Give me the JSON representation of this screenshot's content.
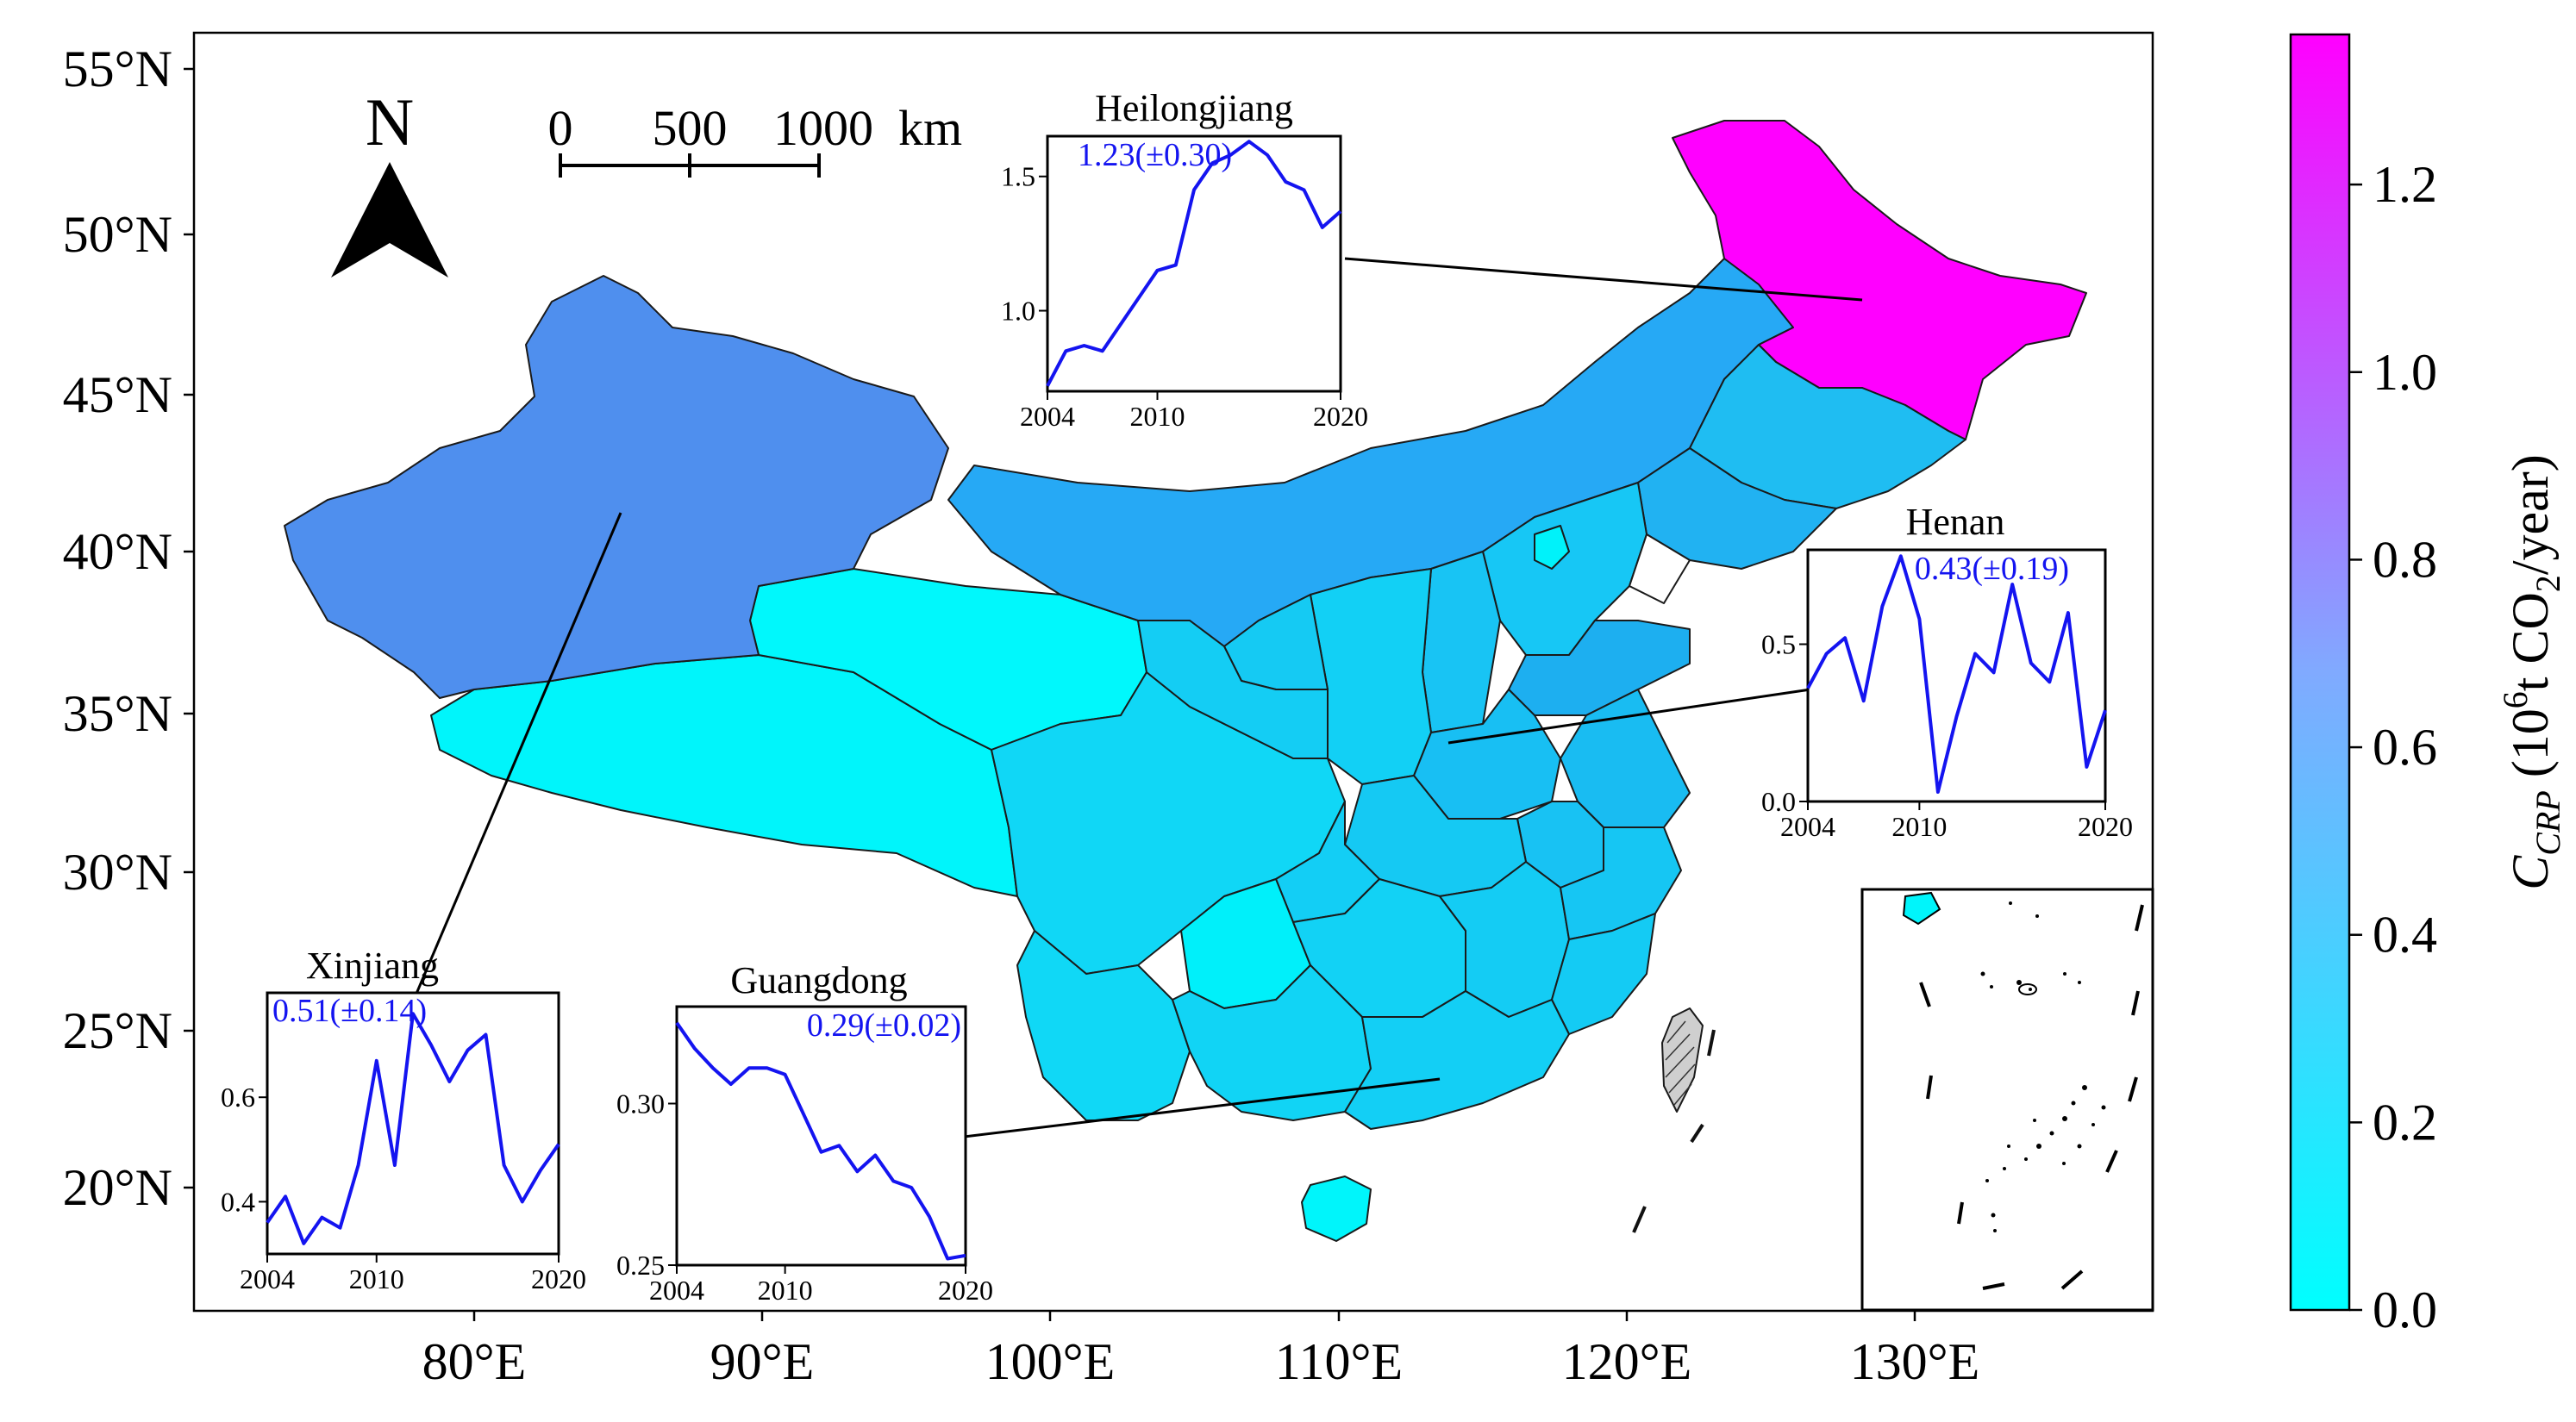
{
  "map": {
    "lat_labels": [
      "55°N",
      "50°N",
      "45°N",
      "40°N",
      "35°N",
      "30°N",
      "25°N",
      "20°N"
    ],
    "lon_labels": [
      "80°E",
      "90°E",
      "100°E",
      "110°E",
      "120°E",
      "130°E"
    ],
    "north_arrow_label": "N",
    "scale_bar": {
      "ticks": [
        "0",
        "500",
        "1000"
      ],
      "unit": "km"
    }
  },
  "colorbar": {
    "label_main": "C",
    "label_sub": "CRP",
    "label_rest": " (10",
    "label_sup": "6",
    "label_rest2": "t CO",
    "label_sub2": "2",
    "label_rest3": "/year)",
    "ticks": [
      "0.0",
      "0.2",
      "0.4",
      "0.6",
      "0.8",
      "1.0",
      "1.2"
    ],
    "colors": {
      "min": "#00ffff",
      "max": "#ff00ff"
    }
  },
  "chart_data": [
    {
      "type": "line",
      "name": "Heilongjiang",
      "title": "Heilongjiang",
      "annotation": "1.23(±0.30)",
      "x": [
        2004,
        2005,
        2006,
        2007,
        2008,
        2009,
        2010,
        2011,
        2012,
        2013,
        2014,
        2015,
        2016,
        2017,
        2018,
        2019,
        2020
      ],
      "values": [
        0.72,
        0.85,
        0.87,
        0.85,
        0.95,
        1.05,
        1.15,
        1.17,
        1.45,
        1.55,
        1.58,
        1.63,
        1.58,
        1.48,
        1.45,
        1.31,
        1.37
      ],
      "xlim": [
        2004,
        2020
      ],
      "ylim": [
        0.7,
        1.65
      ],
      "xticks": [
        "2004",
        "2010",
        "2020"
      ],
      "yticks": [
        "1.0",
        "1.5"
      ],
      "ytick_values": [
        1.0,
        1.5
      ]
    },
    {
      "type": "line",
      "name": "Henan",
      "title": "Henan",
      "annotation": "0.43(±0.19)",
      "x": [
        2004,
        2005,
        2006,
        2007,
        2008,
        2009,
        2010,
        2011,
        2012,
        2013,
        2014,
        2015,
        2016,
        2017,
        2018,
        2019,
        2020
      ],
      "values": [
        0.36,
        0.47,
        0.52,
        0.32,
        0.62,
        0.78,
        0.58,
        0.03,
        0.27,
        0.47,
        0.41,
        0.69,
        0.44,
        0.38,
        0.6,
        0.11,
        0.29
      ],
      "xlim": [
        2004,
        2020
      ],
      "ylim": [
        0.0,
        0.8
      ],
      "xticks": [
        "2004",
        "2010",
        "2020"
      ],
      "yticks": [
        "0.0",
        "0.5"
      ],
      "ytick_values": [
        0.0,
        0.5
      ]
    },
    {
      "type": "line",
      "name": "Xinjiang",
      "title": "Xinjiang",
      "annotation": "0.51(±0.14)",
      "x": [
        2004,
        2005,
        2006,
        2007,
        2008,
        2009,
        2010,
        2011,
        2012,
        2013,
        2014,
        2015,
        2016,
        2017,
        2018,
        2019,
        2020
      ],
      "values": [
        0.36,
        0.41,
        0.32,
        0.37,
        0.35,
        0.47,
        0.67,
        0.47,
        0.76,
        0.7,
        0.63,
        0.69,
        0.72,
        0.47,
        0.4,
        0.46,
        0.51
      ],
      "xlim": [
        2004,
        2020
      ],
      "ylim": [
        0.3,
        0.8
      ],
      "xticks": [
        "2004",
        "2010",
        "2020"
      ],
      "yticks": [
        "0.4",
        "0.6"
      ],
      "ytick_values": [
        0.4,
        0.6
      ]
    },
    {
      "type": "line",
      "name": "Guangdong",
      "title": "Guangdong",
      "annotation": "0.29(±0.02)",
      "x": [
        2004,
        2005,
        2006,
        2007,
        2008,
        2009,
        2010,
        2011,
        2012,
        2013,
        2014,
        2015,
        2016,
        2017,
        2018,
        2019,
        2020
      ],
      "values": [
        0.325,
        0.317,
        0.311,
        0.306,
        0.311,
        0.311,
        0.309,
        0.297,
        0.285,
        0.287,
        0.279,
        0.284,
        0.276,
        0.274,
        0.265,
        0.252,
        0.253
      ],
      "xlim": [
        2004,
        2020
      ],
      "ylim": [
        0.25,
        0.33
      ],
      "xticks": [
        "2004",
        "2010",
        "2020"
      ],
      "yticks": [
        "0.25",
        "0.30"
      ],
      "ytick_values": [
        0.25,
        0.3
      ]
    }
  ]
}
